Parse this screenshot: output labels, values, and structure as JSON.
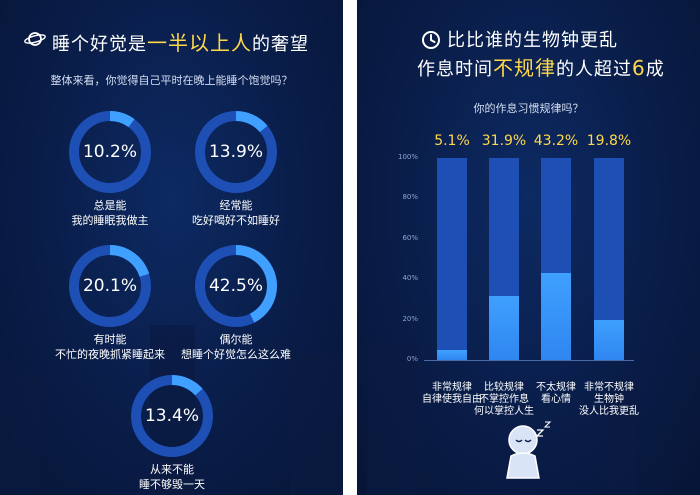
{
  "left": {
    "title_prefix": "睡个好觉是",
    "title_highlight": "一半以上人",
    "title_suffix": "的奢望",
    "question": "整体来看，你觉得自己平时在晚上能睡个饱觉吗？",
    "icon": "planet-icon"
  },
  "right": {
    "title_line1": "比比谁的生物钟更乱",
    "title_line2_prefix": "作息时间",
    "title_line2_highlight": "不规律",
    "title_line2_mid": "的人超过",
    "title_line2_number": "6",
    "title_line2_suffix": "成",
    "question": "你的作息习惯规律吗？",
    "icon": "clock-icon",
    "mascot_icon": "sleepy-character-icon"
  },
  "colors": {
    "background": "#0a1f4d",
    "ring_track": "#1d4fb5",
    "ring_fill": "#3fa0ff",
    "highlight": "#ffd84a"
  },
  "chart_data": [
    {
      "type": "pie",
      "style": "donut",
      "categories": [
        "总是能",
        "经常能",
        "有时能",
        "偶尔能",
        "从来不能"
      ],
      "captions": [
        "我的睡眠我做主",
        "吃好喝好不如睡好",
        "不忙的夜晚抓紧睡起来",
        "想睡个好觉怎么这么难",
        "睡不够毁一天"
      ],
      "values": [
        10.2,
        13.9,
        20.1,
        42.5,
        13.4
      ],
      "labels": [
        "10.2%",
        "13.9%",
        "20.1%",
        "42.5%",
        "13.4%"
      ]
    },
    {
      "type": "bar",
      "categories": [
        [
          "非常规律",
          "自律使我自由"
        ],
        [
          "比较规律",
          "不掌控作息",
          "何以掌控人生"
        ],
        [
          "不太规律",
          "看心情"
        ],
        [
          "非常不规律",
          "生物钟",
          "没人比我更乱"
        ]
      ],
      "values": [
        5.1,
        31.9,
        43.2,
        19.8
      ],
      "labels": [
        "5.1%",
        "31.9%",
        "43.2%",
        "19.8%"
      ],
      "ylim": [
        0,
        100
      ],
      "yticks": [
        "100%",
        "80%",
        "60%",
        "40%",
        "20%",
        "0%"
      ],
      "grid": false
    }
  ]
}
